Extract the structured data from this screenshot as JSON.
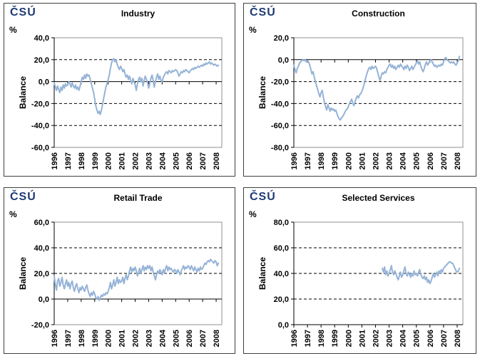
{
  "branding": {
    "logo_text": "ČSÚ",
    "percent_label": "%"
  },
  "colors": {
    "line": "#95B3D7",
    "logo": "#1F3B75",
    "plot_border": "#909090",
    "axis": "#000000",
    "panel_border": "#404040"
  },
  "chart_data": [
    {
      "type": "line",
      "title": "Industry",
      "ylabel": "Balance",
      "unit": "%",
      "grid": "dashed horizontal",
      "legend": "none",
      "ylim": [
        -60,
        40
      ],
      "yticks": [
        40,
        20,
        0,
        -20,
        -40,
        -60
      ],
      "xlim": [
        1996,
        2008.42
      ],
      "xticks": [
        1996,
        1997,
        1998,
        1999,
        2000,
        2001,
        2002,
        2003,
        2004,
        2005,
        2006,
        2007,
        2008
      ],
      "x_start": 1996,
      "x_step": "monthly",
      "values": [
        -1,
        -5,
        -8,
        -4,
        -7,
        -10,
        -5,
        -8,
        -3,
        -6,
        -2,
        -4,
        -3,
        0,
        -2,
        -5,
        -1,
        -4,
        -6,
        -3,
        -7,
        -5,
        -8,
        -4,
        0,
        4,
        2,
        6,
        3,
        7,
        5,
        6,
        2,
        -2,
        -6,
        -10,
        -16,
        -22,
        -26,
        -29,
        -27,
        -30,
        -26,
        -21,
        -15,
        -10,
        -5,
        -2,
        2,
        6,
        12,
        17,
        20,
        21,
        18,
        20,
        16,
        13,
        11,
        14,
        12,
        9,
        11,
        7,
        4,
        6,
        2,
        5,
        1,
        -2,
        3,
        0,
        -3,
        -8,
        -2,
        2,
        4,
        0,
        3,
        -4,
        1,
        5,
        2,
        -1,
        -6,
        -2,
        3,
        6,
        1,
        -5,
        0,
        4,
        7,
        2,
        5,
        1,
        0,
        4,
        6,
        8,
        9,
        7,
        10,
        9,
        8,
        10,
        9,
        10,
        11,
        10,
        8,
        5,
        7,
        9,
        8,
        10,
        9,
        11,
        10,
        9,
        8,
        10,
        11,
        12,
        11,
        13,
        12,
        13,
        14,
        13,
        14,
        15,
        14,
        16,
        15,
        17,
        16,
        17,
        18,
        16,
        17,
        16,
        15,
        16,
        15,
        14,
        15
      ]
    },
    {
      "type": "line",
      "title": "Construction",
      "ylabel": "Balance",
      "unit": "%",
      "grid": "dashed horizontal",
      "legend": "none",
      "ylim": [
        -80,
        20
      ],
      "yticks": [
        20,
        0,
        -20,
        -40,
        -60,
        -80
      ],
      "xlim": [
        1996,
        2008.42
      ],
      "xticks": [
        1996,
        1997,
        1998,
        1999,
        2000,
        2001,
        2002,
        2003,
        2004,
        2005,
        2006,
        2007,
        2008
      ],
      "x_start": 1996,
      "x_step": "monthly",
      "values": [
        -5,
        -9,
        -12,
        -8,
        -6,
        -3,
        -2,
        -1,
        0,
        -1,
        0,
        -2,
        -1,
        -2,
        -5,
        -9,
        -13,
        -11,
        -16,
        -20,
        -24,
        -27,
        -31,
        -34,
        -30,
        -28,
        -34,
        -39,
        -43,
        -46,
        -41,
        -44,
        -47,
        -44,
        -46,
        -45,
        -47,
        -46,
        -49,
        -52,
        -54,
        -55,
        -53,
        -52,
        -50,
        -48,
        -46,
        -45,
        -43,
        -40,
        -38,
        -36,
        -40,
        -42,
        -38,
        -35,
        -33,
        -35,
        -32,
        -31,
        -29,
        -26,
        -22,
        -18,
        -14,
        -11,
        -8,
        -7,
        -9,
        -6,
        -8,
        -7,
        -6,
        -8,
        -12,
        -16,
        -19,
        -15,
        -12,
        -13,
        -11,
        -12,
        -9,
        -7,
        -5,
        -4,
        -7,
        -5,
        -8,
        -6,
        -9,
        -7,
        -5,
        -7,
        -4,
        -6,
        -7,
        -9,
        -6,
        -8,
        -5,
        -7,
        -10,
        -8,
        -6,
        -9,
        -7,
        -5,
        -3,
        -1,
        -4,
        -2,
        -6,
        -9,
        -11,
        -8,
        -4,
        -2,
        -5,
        -3,
        -1,
        0,
        -2,
        -4,
        -6,
        -5,
        -7,
        -6,
        -5,
        -6,
        -4,
        -5,
        -2,
        1,
        2,
        0,
        -1,
        -2,
        -3,
        -2,
        -3,
        -2,
        -4,
        -5,
        -3,
        -1,
        3
      ]
    },
    {
      "type": "line",
      "title": "Retail Trade",
      "ylabel": "Balance",
      "unit": "%",
      "grid": "dashed horizontal",
      "legend": "none",
      "ylim": [
        -20,
        60
      ],
      "yticks": [
        60,
        40,
        20,
        0,
        -20
      ],
      "xlim": [
        1996,
        2008.42
      ],
      "xticks": [
        1996,
        1997,
        1998,
        1999,
        2000,
        2001,
        2002,
        2003,
        2004,
        2005,
        2006,
        2007,
        2008
      ],
      "x_start": 1996,
      "x_step": "monthly",
      "values": [
        18,
        11,
        7,
        14,
        16,
        10,
        13,
        17,
        11,
        8,
        12,
        15,
        10,
        13,
        8,
        12,
        14,
        9,
        6,
        10,
        12,
        8,
        5,
        9,
        7,
        10,
        8,
        6,
        9,
        11,
        7,
        4,
        2,
        5,
        3,
        6,
        4,
        1,
        0,
        2,
        -1,
        1,
        3,
        2,
        4,
        3,
        5,
        4,
        6,
        9,
        13,
        8,
        11,
        15,
        10,
        13,
        17,
        12,
        15,
        13,
        14,
        17,
        12,
        16,
        19,
        15,
        18,
        22,
        25,
        21,
        24,
        22,
        25,
        22,
        18,
        21,
        24,
        20,
        23,
        26,
        22,
        25,
        23,
        26,
        24,
        26,
        22,
        25,
        21,
        18,
        15,
        19,
        22,
        20,
        23,
        21,
        19,
        23,
        20,
        24,
        26,
        22,
        25,
        23,
        24,
        22,
        21,
        23,
        22,
        20,
        23,
        21,
        19,
        22,
        24,
        26,
        23,
        25,
        24,
        26,
        25,
        23,
        26,
        24,
        22,
        25,
        23,
        21,
        24,
        22,
        25,
        23,
        24,
        26,
        28,
        27,
        29,
        30,
        29,
        31,
        30,
        29,
        28,
        30,
        29,
        26,
        28
      ]
    },
    {
      "type": "line",
      "title": "Selected Services",
      "ylabel": "Balance",
      "unit": "%",
      "grid": "dashed horizontal",
      "legend": "none",
      "ylim": [
        0,
        80
      ],
      "yticks": [
        80,
        60,
        40,
        20,
        0
      ],
      "xlim": [
        1996,
        2008.42
      ],
      "xticks": [
        1996,
        1997,
        1998,
        1999,
        2000,
        2001,
        2002,
        2003,
        2004,
        2005,
        2006,
        2007,
        2008
      ],
      "x_start": 2002.5,
      "x_step": "monthly",
      "values": [
        44,
        41,
        45,
        39,
        42,
        38,
        40,
        43,
        46,
        41,
        39,
        42,
        40,
        37,
        35,
        38,
        41,
        37,
        39,
        42,
        45,
        40,
        38,
        41,
        39,
        37,
        40,
        38,
        42,
        39,
        40,
        38,
        41,
        43,
        39,
        37,
        36,
        38,
        35,
        37,
        33,
        35,
        32,
        34,
        37,
        40,
        37,
        39,
        41,
        38,
        42,
        40,
        43,
        41,
        44,
        45,
        46,
        47,
        48,
        49,
        49,
        48,
        48,
        46,
        44,
        42,
        41,
        42,
        44
      ]
    }
  ]
}
